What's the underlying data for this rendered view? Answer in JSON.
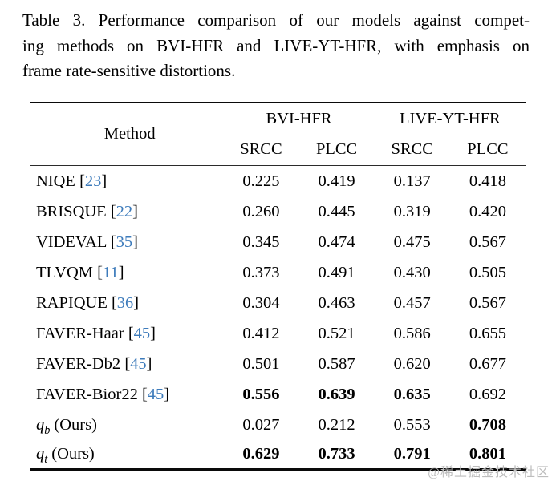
{
  "caption": {
    "lines": [
      "Table 3. Performance comparison of our models against compet-",
      "ing methods on BVI-HFR and LIVE-YT-HFR, with emphasis on",
      "frame rate-sensitive distortions."
    ]
  },
  "table": {
    "method_header": "Method",
    "groups": [
      {
        "label": "BVI-HFR"
      },
      {
        "label": "LIVE-YT-HFR"
      }
    ],
    "subheaders": [
      "SRCC",
      "PLCC",
      "SRCC",
      "PLCC"
    ],
    "bracket_open": "[",
    "bracket_close": "]",
    "rows": [
      {
        "method": "NIQE",
        "cite": "23",
        "values": [
          "0.225",
          "0.419",
          "0.137",
          "0.418"
        ],
        "bold": []
      },
      {
        "method": "BRISQUE",
        "cite": "22",
        "values": [
          "0.260",
          "0.445",
          "0.319",
          "0.420"
        ],
        "bold": []
      },
      {
        "method": "VIDEVAL",
        "cite": "35",
        "values": [
          "0.345",
          "0.474",
          "0.475",
          "0.567"
        ],
        "bold": []
      },
      {
        "method": "TLVQM",
        "cite": "11",
        "values": [
          "0.373",
          "0.491",
          "0.430",
          "0.505"
        ],
        "bold": []
      },
      {
        "method": "RAPIQUE",
        "cite": "36",
        "values": [
          "0.304",
          "0.463",
          "0.457",
          "0.567"
        ],
        "bold": []
      },
      {
        "method": "FAVER-Haar",
        "cite": "45",
        "values": [
          "0.412",
          "0.521",
          "0.586",
          "0.655"
        ],
        "bold": []
      },
      {
        "method": "FAVER-Db2",
        "cite": "45",
        "values": [
          "0.501",
          "0.587",
          "0.620",
          "0.677"
        ],
        "bold": []
      },
      {
        "method": "FAVER-Bior22",
        "cite": "45",
        "values": [
          "0.556",
          "0.639",
          "0.635",
          "0.692"
        ],
        "bold": [
          0,
          1,
          2
        ]
      }
    ],
    "ours_rows": [
      {
        "var": "q",
        "sub": "b",
        "suffix": "(Ours)",
        "values": [
          "0.027",
          "0.212",
          "0.553",
          "0.708"
        ],
        "bold": [
          3
        ]
      },
      {
        "var": "q",
        "sub": "t",
        "suffix": "(Ours)",
        "values": [
          "0.629",
          "0.733",
          "0.791",
          "0.801"
        ],
        "bold": [
          0,
          1,
          2,
          3
        ]
      }
    ]
  },
  "colors": {
    "text": "#000000",
    "citation_link": "#3d7bbb",
    "watermark": "#bdbdbd",
    "rule": "#0a0a0a"
  },
  "watermark": "@稀土掘金技术社区"
}
